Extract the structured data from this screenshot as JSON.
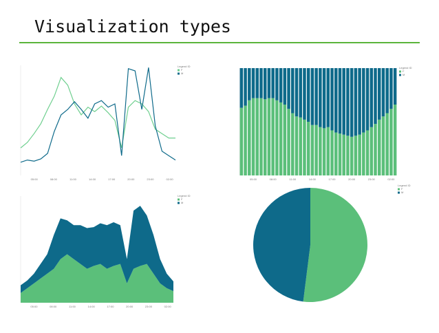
{
  "title": "Visualization types",
  "chart_data": [
    {
      "type": "line",
      "legend_title": "Legend ID",
      "xtick_labels": [
        "05:00",
        "08:00",
        "11:00",
        "14:00",
        "17:00",
        "20:00",
        "23:00",
        "02:00"
      ],
      "ylim": [
        0,
        100
      ],
      "series": [
        {
          "name": "F",
          "color": "#6fcf8f",
          "values": [
            25,
            30,
            38,
            47,
            60,
            72,
            89,
            82,
            65,
            55,
            62,
            58,
            63,
            57,
            50,
            25,
            62,
            68,
            65,
            58,
            42,
            38,
            34,
            34
          ]
        },
        {
          "name": "M",
          "color": "#0e6a8a",
          "values": [
            12,
            14,
            13,
            15,
            20,
            40,
            55,
            60,
            67,
            60,
            52,
            65,
            68,
            62,
            65,
            18,
            97,
            95,
            60,
            98,
            45,
            22,
            18,
            14
          ]
        }
      ]
    },
    {
      "type": "stacked_bar",
      "legend_title": "Legend ID",
      "xtick_labels": [
        "05:00",
        "08:00",
        "11:00",
        "14:00",
        "17:00",
        "20:00",
        "23:00",
        "02:00"
      ],
      "ylim": [
        0,
        100
      ],
      "series": [
        {
          "name": "F",
          "color": "#5bbf7a",
          "values": [
            63,
            65,
            70,
            72,
            72,
            72,
            71,
            72,
            72,
            70,
            68,
            66,
            62,
            58,
            55,
            54,
            52,
            50,
            47,
            47,
            45,
            44,
            45,
            42,
            40,
            39,
            38,
            37,
            36,
            37,
            38,
            40,
            42,
            45,
            48,
            52,
            55,
            58,
            62,
            66
          ]
        },
        {
          "name": "M",
          "color": "#0e6a8a",
          "values": [
            37,
            35,
            30,
            28,
            28,
            28,
            29,
            28,
            28,
            30,
            32,
            34,
            38,
            42,
            45,
            46,
            48,
            50,
            53,
            53,
            55,
            56,
            55,
            58,
            60,
            61,
            62,
            63,
            64,
            63,
            62,
            60,
            58,
            55,
            52,
            48,
            45,
            42,
            38,
            34
          ]
        }
      ]
    },
    {
      "type": "stacked_area",
      "legend_title": "Legend ID",
      "xtick_labels": [
        "05:00",
        "08:00",
        "11:00",
        "14:00",
        "17:00",
        "20:00",
        "23:00",
        "02:00"
      ],
      "ylim": [
        0,
        110
      ],
      "series": [
        {
          "name": "F",
          "color": "#5bbf7a",
          "values": [
            10,
            15,
            20,
            25,
            30,
            35,
            45,
            50,
            45,
            40,
            35,
            38,
            40,
            35,
            38,
            40,
            20,
            35,
            38,
            40,
            30,
            20,
            15,
            12
          ]
        },
        {
          "name": "M",
          "color": "#0e6a8a",
          "values": [
            8,
            8,
            10,
            15,
            20,
            35,
            42,
            35,
            35,
            40,
            42,
            40,
            42,
            45,
            45,
            40,
            25,
            60,
            62,
            50,
            40,
            25,
            15,
            10
          ]
        }
      ]
    },
    {
      "type": "pie",
      "legend_title": "Legend ID",
      "categories": [
        "F",
        "M"
      ],
      "values": [
        52,
        48
      ],
      "colors": [
        "#5bbf7a",
        "#0e6a8a"
      ]
    }
  ]
}
